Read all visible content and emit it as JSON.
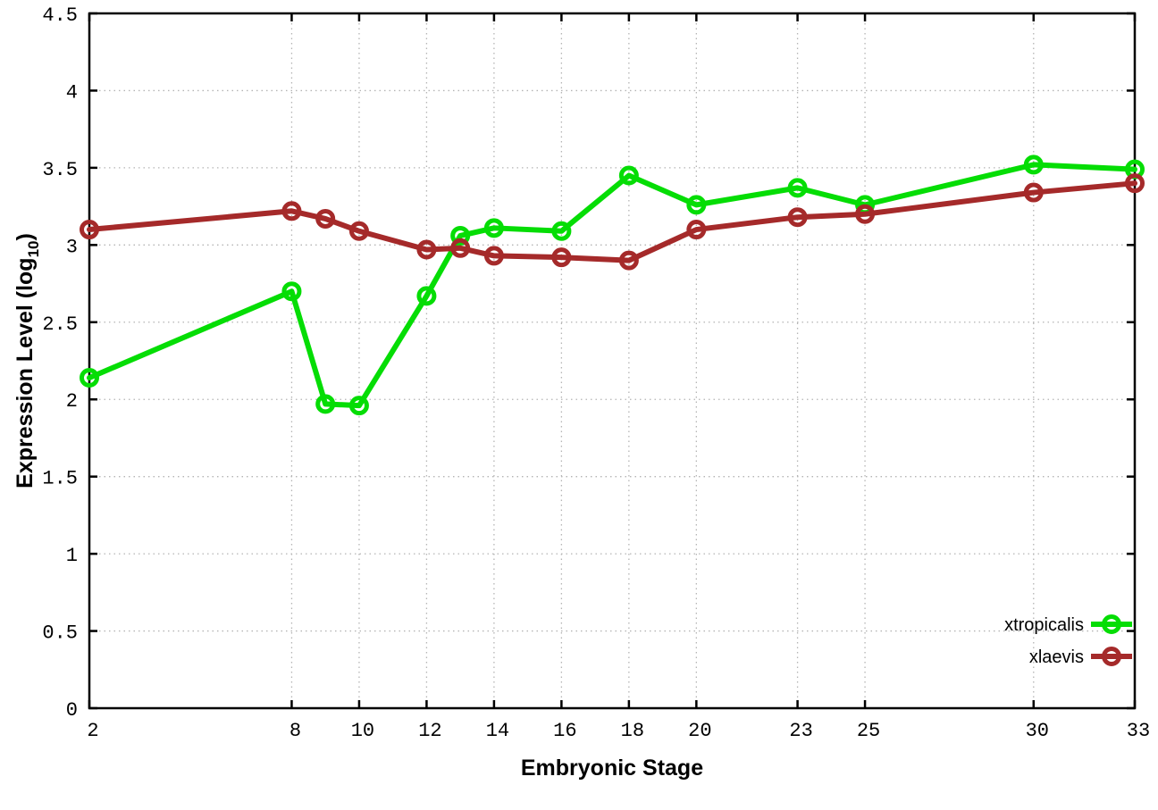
{
  "chart_data": {
    "type": "line",
    "title": "",
    "xlabel": "Embryonic Stage",
    "ylabel": {
      "text": "Expression Level (log10)",
      "pre": "Expression Level (log",
      "sub": "10",
      "post": ")"
    },
    "x": [
      2,
      8,
      9,
      10,
      12,
      13,
      14,
      16,
      18,
      20,
      23,
      25,
      30,
      33
    ],
    "series": [
      {
        "name": "xtropicalis",
        "color": "#05dd05",
        "values": [
          2.14,
          2.7,
          1.97,
          1.96,
          2.67,
          3.06,
          3.11,
          3.09,
          3.45,
          3.26,
          3.37,
          3.26,
          3.52,
          3.49
        ]
      },
      {
        "name": "xlaevis",
        "color": "#a52a2a",
        "values": [
          3.1,
          3.22,
          3.17,
          3.09,
          2.97,
          2.98,
          2.93,
          2.92,
          2.9,
          3.1,
          3.18,
          3.2,
          3.34,
          3.4
        ]
      }
    ],
    "xtick_labels": [
      "2",
      "8",
      "10",
      "12",
      "14",
      "16",
      "18",
      "20",
      "23",
      "25",
      "30",
      "33"
    ],
    "xtick_values": [
      2,
      8,
      10,
      12,
      14,
      16,
      18,
      20,
      23,
      25,
      30,
      33
    ],
    "ytick_labels": [
      "0",
      "0.5",
      "1",
      "1.5",
      "2",
      "2.5",
      "3",
      "3.5",
      "4",
      "4.5"
    ],
    "ytick_values": [
      0,
      0.5,
      1,
      1.5,
      2,
      2.5,
      3,
      3.5,
      4,
      4.5
    ],
    "xlim": [
      2,
      33
    ],
    "ylim": [
      0,
      4.5
    ],
    "grid": true,
    "legend_position": "bottom-right",
    "legend_entries": [
      "xtropicalis",
      "xlaevis"
    ]
  },
  "colors": {
    "background": "#ffffff",
    "axis": "#000000",
    "grid": "#b4b4b4",
    "tick_label": "#000000",
    "xtropicalis": "#05dd05",
    "xlaevis": "#a52a2a"
  }
}
